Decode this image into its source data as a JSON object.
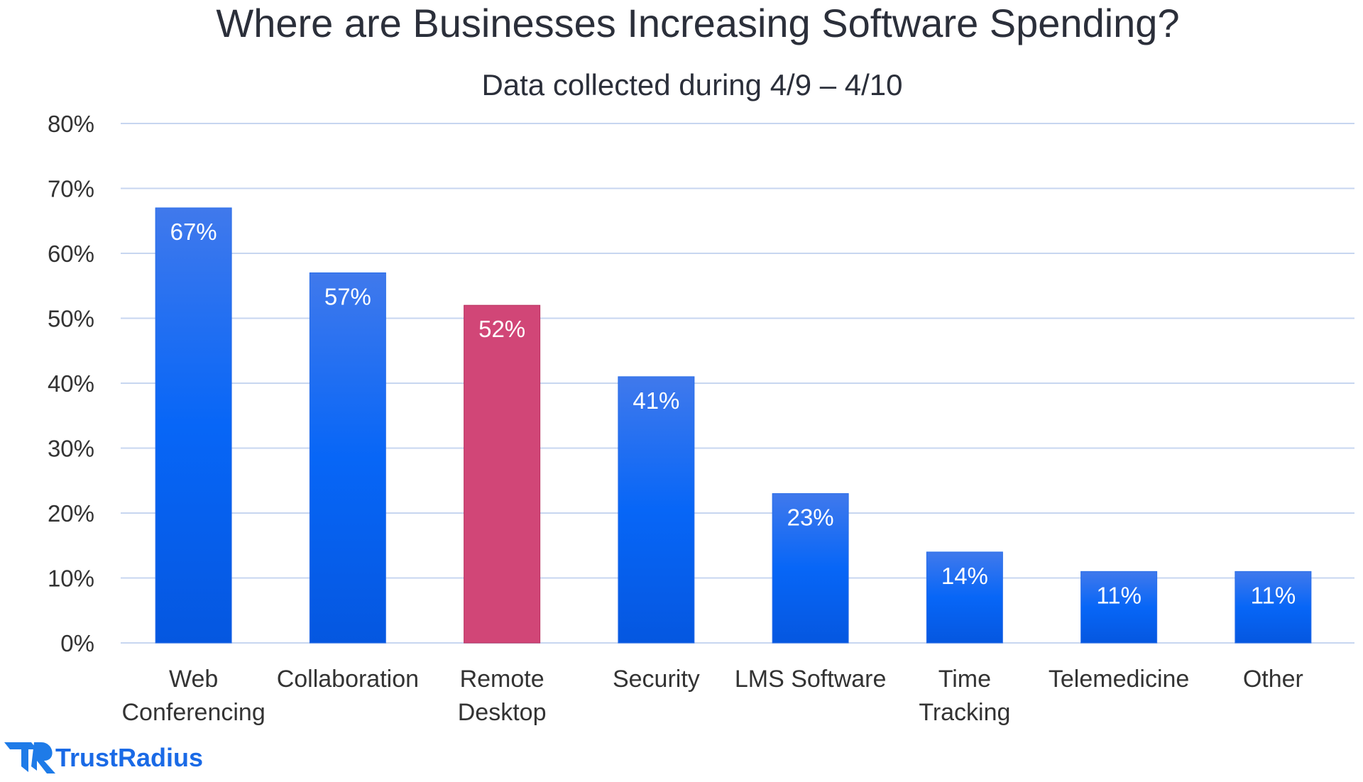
{
  "chart_data": {
    "type": "bar",
    "title": "Where are Businesses Increasing Software Spending?",
    "subtitle": "Data collected during 4/9 – 4/10",
    "xlabel": "",
    "ylabel": "",
    "ylim": [
      0,
      80
    ],
    "yticks": [
      "0%",
      "10%",
      "20%",
      "30%",
      "40%",
      "50%",
      "60%",
      "70%",
      "80%"
    ],
    "grid": true,
    "categories": [
      [
        "Web",
        "Conferencing"
      ],
      [
        "Collaboration"
      ],
      [
        "Remote",
        "Desktop"
      ],
      [
        "Security"
      ],
      [
        "LMS Software"
      ],
      [
        "Time",
        "Tracking"
      ],
      [
        "Telemedicine"
      ],
      [
        "Other"
      ]
    ],
    "values": [
      67,
      57,
      52,
      41,
      23,
      14,
      11,
      11
    ],
    "data_labels": [
      "67%",
      "57%",
      "52%",
      "41%",
      "23%",
      "14%",
      "11%",
      "11%"
    ],
    "colors": {
      "bar": "#0a66f0",
      "bar_top": "#4079ec",
      "highlight": "#d14677",
      "grid": "#c7d6f0"
    },
    "highlight_index": 2
  },
  "branding": {
    "logo_text": "TrustRadius"
  }
}
